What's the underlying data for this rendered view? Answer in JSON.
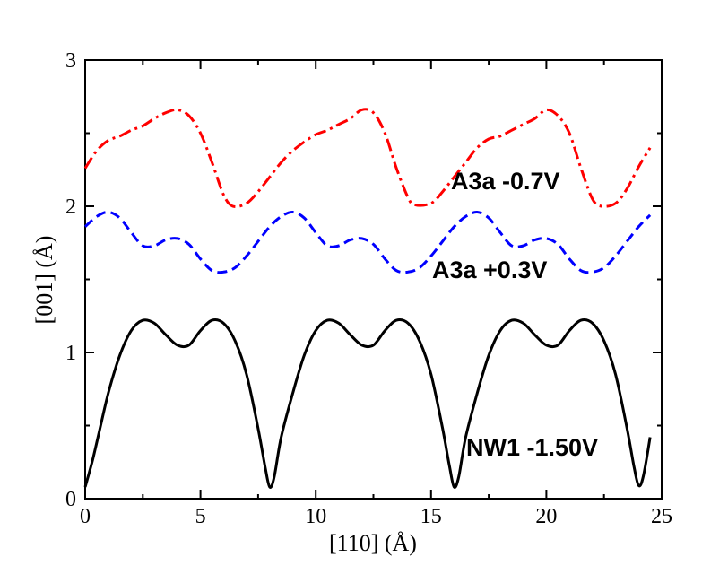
{
  "chart_data": {
    "type": "line",
    "title": "",
    "xlabel": "[110]   (Å)",
    "ylabel": "[001]  (Å)",
    "xlim": [
      0,
      25
    ],
    "ylim": [
      0,
      3
    ],
    "xticks": [
      0,
      5,
      10,
      15,
      20,
      25
    ],
    "yticks": [
      0,
      1,
      2,
      3
    ],
    "series": [
      {
        "name": "A3a -0.7V",
        "color": "#ff0000",
        "style": "dash-dot",
        "x": [
          0,
          0.5,
          1.0,
          1.5,
          2.0,
          2.5,
          3.0,
          3.5,
          4.0,
          4.5,
          5.0,
          5.5,
          6.0,
          6.4,
          7.0,
          7.5,
          8.0,
          8.5,
          9.0,
          9.5,
          10.0,
          10.5,
          11.0,
          11.5,
          12.0,
          12.5,
          13.0,
          13.5,
          14.0,
          14.3,
          15.0,
          15.5,
          16.0,
          16.5,
          17.0,
          17.5,
          18.0,
          18.5,
          19.0,
          19.5,
          20.0,
          20.5,
          21.0,
          21.5,
          22.0,
          22.4,
          23.0,
          23.5,
          24.0,
          24.5
        ],
        "y": [
          2.26,
          2.38,
          2.45,
          2.48,
          2.52,
          2.55,
          2.6,
          2.64,
          2.66,
          2.62,
          2.5,
          2.3,
          2.08,
          2.0,
          2.02,
          2.1,
          2.2,
          2.3,
          2.38,
          2.44,
          2.49,
          2.52,
          2.56,
          2.6,
          2.66,
          2.64,
          2.5,
          2.26,
          2.06,
          2.01,
          2.02,
          2.1,
          2.2,
          2.3,
          2.4,
          2.46,
          2.48,
          2.52,
          2.56,
          2.6,
          2.66,
          2.62,
          2.5,
          2.26,
          2.05,
          2.0,
          2.02,
          2.12,
          2.27,
          2.4
        ]
      },
      {
        "name": "A3a +0.3V",
        "color": "#0000ff",
        "style": "dashed",
        "x": [
          0,
          0.5,
          1.0,
          1.5,
          2.0,
          2.5,
          3.0,
          3.5,
          4.0,
          4.5,
          5.0,
          5.5,
          6.0,
          6.5,
          7.0,
          7.5,
          8.0,
          8.5,
          9.0,
          9.5,
          10.0,
          10.5,
          11.0,
          11.5,
          12.0,
          12.5,
          13.0,
          13.5,
          14.0,
          14.5,
          15.0,
          15.5,
          16.0,
          16.5,
          17.0,
          17.5,
          18.0,
          18.5,
          19.0,
          19.5,
          20.0,
          20.5,
          21.0,
          21.5,
          22.0,
          22.5,
          23.0,
          23.5,
          24.0,
          24.5
        ],
        "y": [
          1.86,
          1.93,
          1.96,
          1.92,
          1.82,
          1.73,
          1.73,
          1.77,
          1.78,
          1.74,
          1.64,
          1.56,
          1.55,
          1.58,
          1.66,
          1.76,
          1.86,
          1.93,
          1.96,
          1.92,
          1.82,
          1.73,
          1.73,
          1.77,
          1.78,
          1.74,
          1.64,
          1.56,
          1.55,
          1.58,
          1.66,
          1.76,
          1.86,
          1.93,
          1.96,
          1.92,
          1.82,
          1.73,
          1.73,
          1.77,
          1.78,
          1.74,
          1.64,
          1.56,
          1.55,
          1.58,
          1.66,
          1.76,
          1.86,
          1.94
        ]
      },
      {
        "name": "NW1 -1.50V",
        "color": "#000000",
        "style": "solid",
        "x": [
          0,
          0.3,
          0.6,
          1.0,
          1.5,
          2.0,
          2.5,
          3.0,
          3.5,
          4.0,
          4.5,
          5.0,
          5.5,
          6.0,
          6.5,
          7.0,
          7.5,
          7.8,
          8.0,
          8.2,
          8.5,
          9.0,
          9.5,
          10.0,
          10.5,
          11.0,
          11.5,
          12.0,
          12.5,
          13.0,
          13.5,
          14.0,
          14.5,
          15.0,
          15.5,
          15.8,
          16.0,
          16.2,
          16.5,
          17.0,
          17.5,
          18.0,
          18.5,
          19.0,
          19.5,
          20.0,
          20.5,
          21.0,
          21.5,
          22.0,
          22.5,
          23.0,
          23.5,
          23.8,
          24.0,
          24.2,
          24.5
        ],
        "y": [
          0.08,
          0.25,
          0.45,
          0.72,
          0.98,
          1.15,
          1.22,
          1.2,
          1.12,
          1.05,
          1.05,
          1.15,
          1.22,
          1.2,
          1.08,
          0.85,
          0.48,
          0.22,
          0.08,
          0.15,
          0.42,
          0.72,
          0.98,
          1.15,
          1.22,
          1.2,
          1.12,
          1.05,
          1.05,
          1.15,
          1.22,
          1.2,
          1.08,
          0.85,
          0.48,
          0.22,
          0.08,
          0.15,
          0.42,
          0.72,
          0.98,
          1.15,
          1.22,
          1.2,
          1.12,
          1.05,
          1.05,
          1.15,
          1.22,
          1.2,
          1.08,
          0.85,
          0.48,
          0.22,
          0.09,
          0.15,
          0.42
        ]
      }
    ]
  }
}
